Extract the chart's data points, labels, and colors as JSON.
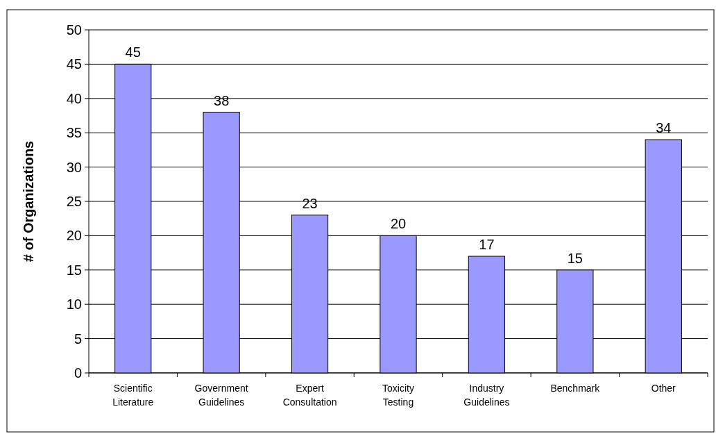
{
  "chart_data": {
    "type": "bar",
    "ylabel": "# of Organizations",
    "categories": [
      "Scientific Literature",
      "Government Guidelines",
      "Expert Consultation",
      "Toxicity Testing",
      "Industry Guidelines",
      "Benchmark",
      "Other"
    ],
    "values": [
      45,
      38,
      23,
      20,
      17,
      15,
      34
    ],
    "color": "#9999ff",
    "ylim": [
      0,
      50
    ],
    "yticks": [
      0,
      5,
      10,
      15,
      20,
      25,
      30,
      35,
      40,
      45,
      50
    ],
    "grid": "y",
    "data_labels": true
  }
}
